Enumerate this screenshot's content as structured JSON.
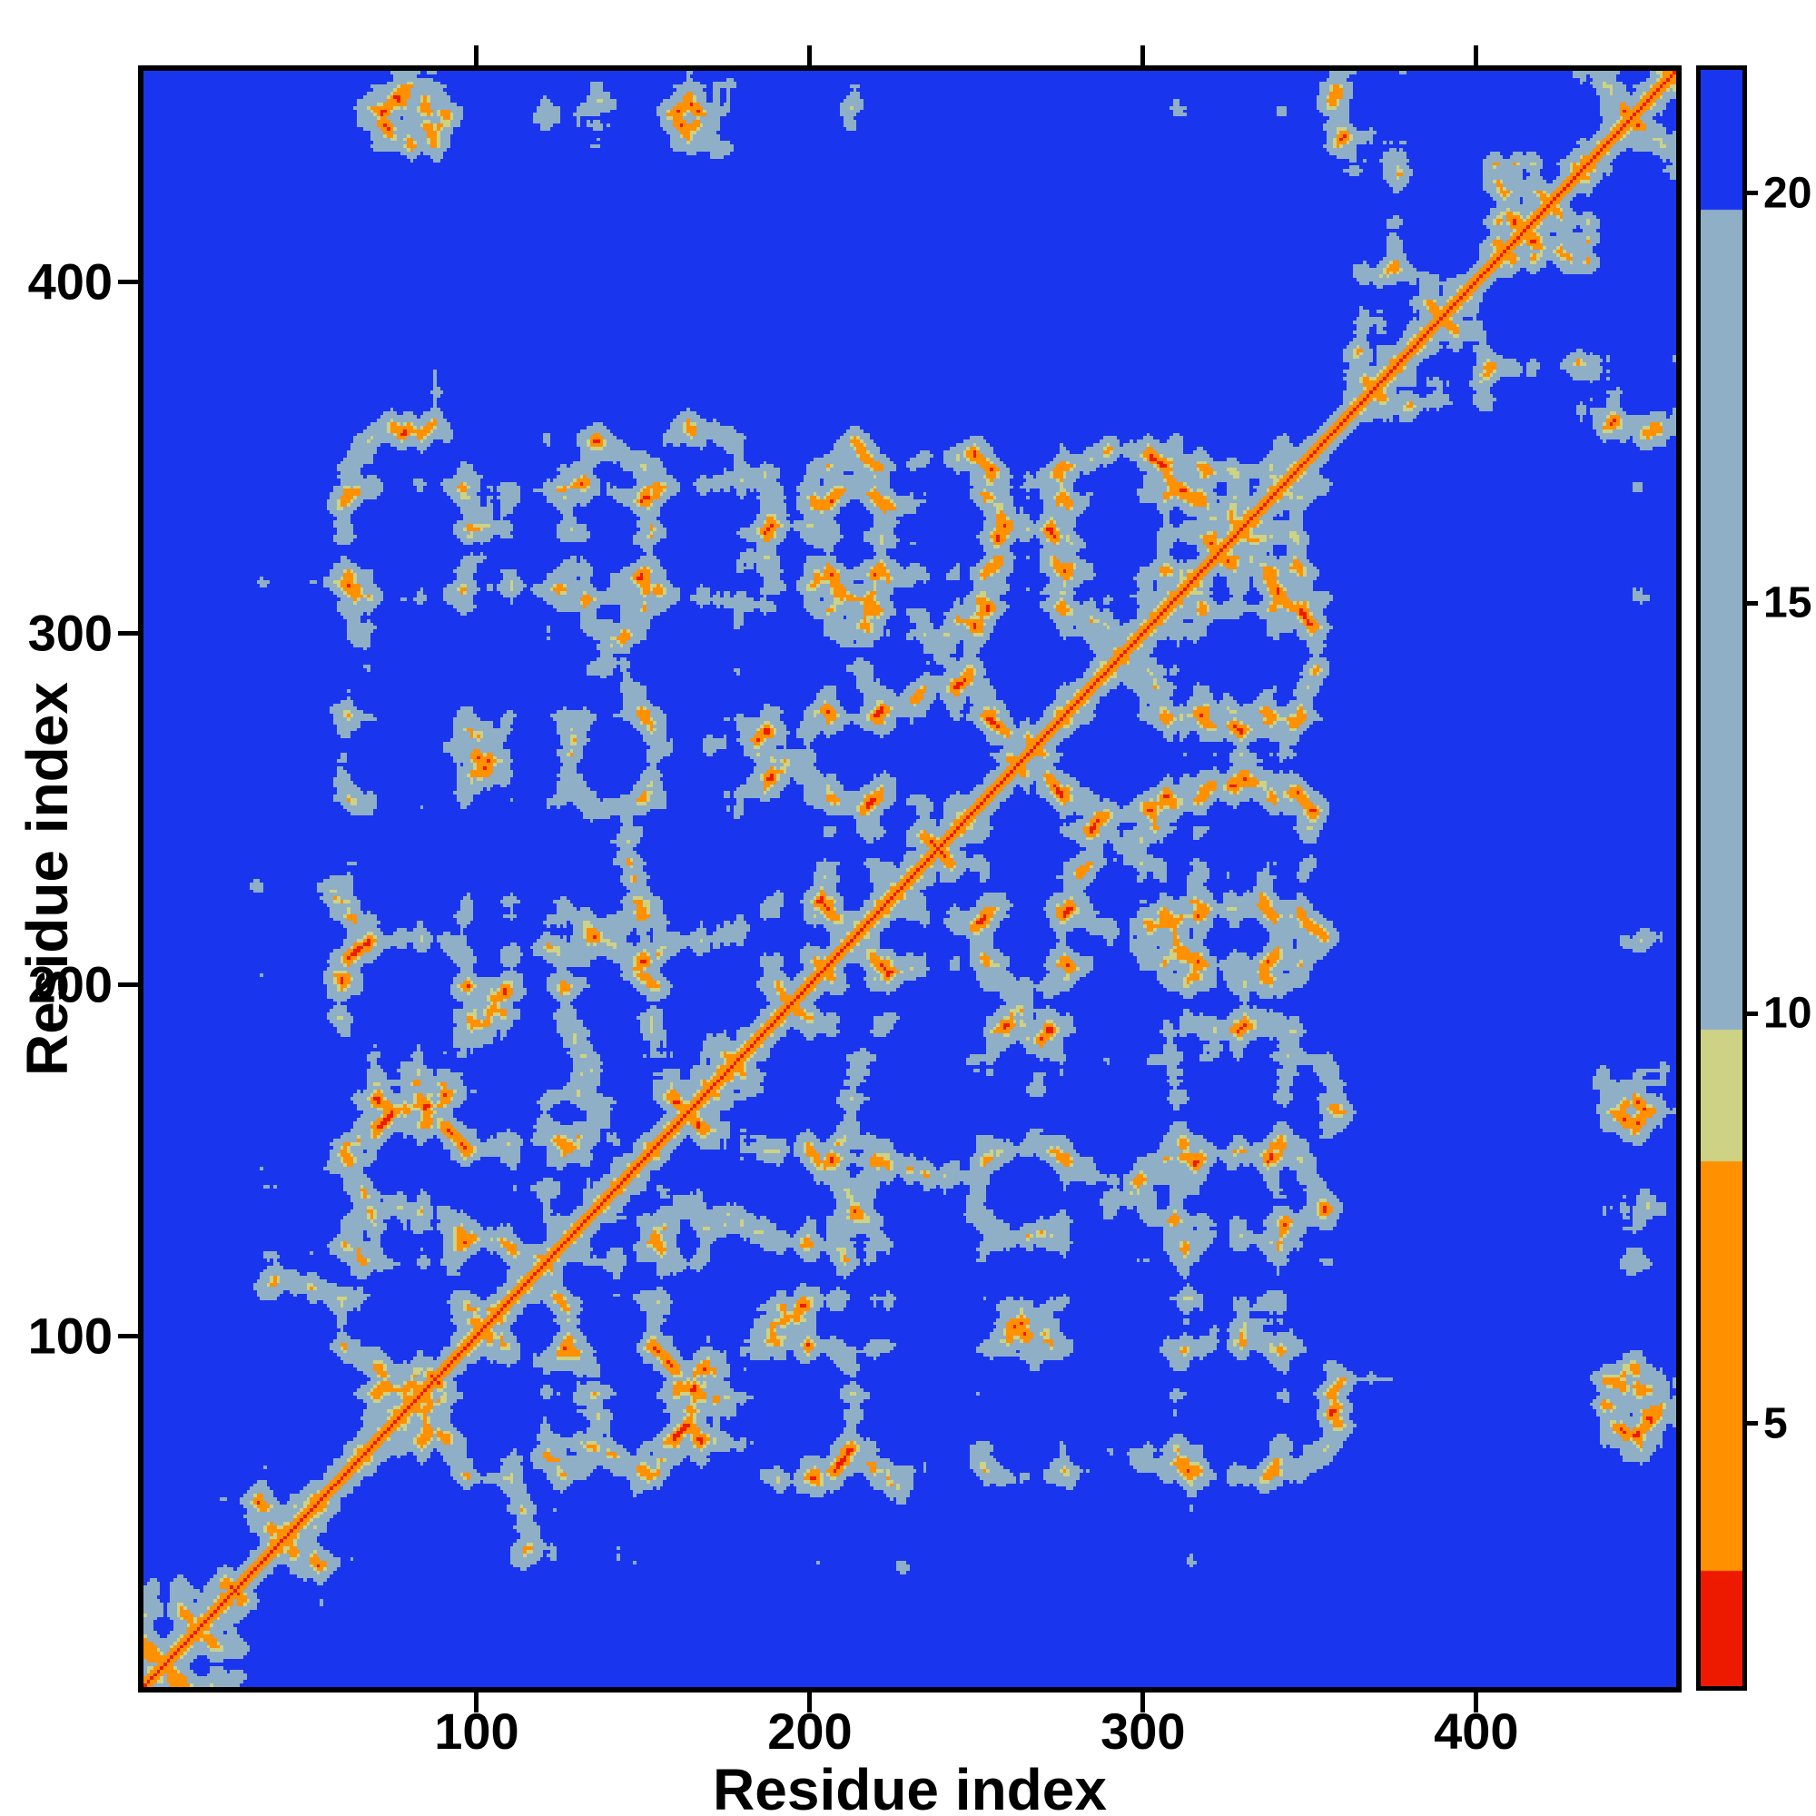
{
  "chart_data": {
    "type": "heatmap",
    "title": "",
    "xlabel": "Residue index",
    "ylabel": "Residue index",
    "x_range": [
      0,
      460
    ],
    "y_range": [
      0,
      460
    ],
    "x_ticks": [
      100,
      200,
      300,
      400
    ],
    "y_ticks": [
      100,
      200,
      300,
      400
    ],
    "n_residues": 460,
    "value_kind": "pairwise residue-residue distance map (protein distance/contact matrix); small distances hot (red/orange), large distances cold (blue)",
    "colorbar": {
      "ticks": [
        5,
        10,
        15,
        20
      ],
      "vmin": 1.8,
      "vmax": 21.5,
      "stops": [
        {
          "upto": 3.2,
          "color": "#ee1a00"
        },
        {
          "upto": 8.2,
          "color": "#ff9000"
        },
        {
          "upto": 9.8,
          "color": "#cdd285"
        },
        {
          "upto": 19.8,
          "color": "#8fafc6"
        },
        {
          "upto": 1000000000.0,
          "color": "#1a35ee"
        }
      ]
    },
    "pattern_notes": [
      "thin red main diagonal with orange fringe running corner to corner (residues 1-460)",
      "dense speckled steel-blue contact block among residues ~30-350 with deep-blue cavities",
      "orange anti-diagonal hairpin streaks near residues ~60-110, ~130-220 and ~230-310",
      "diamond-shaped contact motif around residues ~260-330",
      "residues ~350-460 mostly contact-free (blue) off-diagonal, with gray contact patches versus residues ~270-350 and speckles versus ~100-250",
      "uniform deep-blue background wherever separation exceeds ~20 A"
    ],
    "generation": {
      "seed": 1913,
      "step": 3.8,
      "persistence": 0.7,
      "noise": 0.7,
      "segments": [
        {
          "from": 0,
          "to": 28,
          "center": [
            -34,
            -26,
            4
          ],
          "radius": 15,
          "pull": 0.5
        },
        {
          "from": 28,
          "to": 352,
          "center": [
            0,
            0,
            0
          ],
          "radius": 26,
          "pull": 0.55
        },
        {
          "from": 352,
          "to": 400,
          "center": [
            56,
            14,
            -6
          ],
          "radius": 15,
          "pull": 0.5
        },
        {
          "from": 400,
          "to": 434,
          "center": [
            40,
            38,
            14
          ],
          "radius": 13,
          "pull": 0.5
        },
        {
          "from": 434,
          "to": 460,
          "center": [
            18,
            20,
            -4
          ],
          "radius": 14,
          "pull": 0.5
        }
      ]
    }
  }
}
